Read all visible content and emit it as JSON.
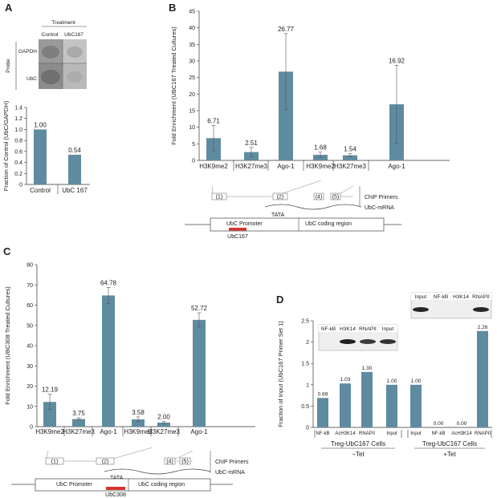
{
  "panels": {
    "A": {
      "letter": "A"
    },
    "B": {
      "letter": "B"
    },
    "C": {
      "letter": "C"
    },
    "D": {
      "letter": "D"
    }
  },
  "blotA": {
    "treatment": "Treatment",
    "probe": "Probe",
    "columns": [
      "Control",
      "UbC167"
    ],
    "rows": [
      "GAPDH",
      "UbC"
    ]
  },
  "blotD1": {
    "lanes": [
      "NF-kB",
      "H3K14",
      "RNAPII",
      "Input"
    ]
  },
  "blotD2": {
    "lanes": [
      "Input",
      "NF-kB",
      "H3K14",
      "RNAPII"
    ]
  },
  "geneB": {
    "primers_label": "ChIP Primers",
    "mrna_label": "UbC-mRNA",
    "tata": "TATA",
    "promoter": "UbC Promoter",
    "coding": "UbC coding region",
    "sirna": "UbC167",
    "primers": [
      "(1)",
      "(2)",
      "(4)",
      "(5)"
    ]
  },
  "geneC": {
    "primers_label": "ChIP Primers",
    "mrna_label": "UbC-mRNA",
    "tata": "TATA",
    "promoter": "UbC Promoter",
    "coding": "UbC coding region",
    "sirna": "UbC308",
    "primers": [
      "(1)",
      "(2)",
      "(4)",
      "(5)"
    ]
  },
  "chart_data": [
    {
      "id": "A",
      "type": "bar",
      "categories": [
        "Control",
        "UbC 167"
      ],
      "values": [
        1.0,
        0.54
      ],
      "value_labels": [
        "1.00",
        "0.54"
      ],
      "ylabel": "Fraction of Control (UbC/GAPDH)",
      "ylim": [
        0,
        1.4
      ],
      "yticks": [
        "0",
        "0.2",
        "0.4",
        "0.6",
        "0.8",
        "1.0",
        "1.2",
        "1.4"
      ],
      "color": "#5f8ba1"
    },
    {
      "id": "B",
      "type": "bar",
      "categories": [
        "H3K9me2",
        "H3K27me3",
        "Ago-1",
        "H3K9me2",
        "H3K27me3",
        "Ago-1"
      ],
      "values": [
        6.71,
        2.51,
        26.77,
        1.68,
        1.54,
        16.92
      ],
      "value_labels": [
        "6.71",
        "2.51",
        "26.77",
        "1.68",
        "1.54",
        "16.92"
      ],
      "errors": [
        3.8,
        1.4,
        11.5,
        0.8,
        0.5,
        11.8
      ],
      "ylabel": "Fold Enrichment (UBC167 Treated Cultures)",
      "ylim": [
        0,
        45
      ],
      "yticks": [
        "0",
        "5",
        "10",
        "15",
        "20",
        "25",
        "30",
        "35",
        "40",
        "45"
      ],
      "color": "#5f8ba1"
    },
    {
      "id": "C",
      "type": "bar",
      "categories": [
        "H3K9me2",
        "H3K27me3",
        "Ago-1",
        "H3K9me2",
        "H3K27me3",
        "Ago-1"
      ],
      "values": [
        12.19,
        3.75,
        64.78,
        3.58,
        2.0,
        52.72
      ],
      "value_labels": [
        "12.19",
        "3.75",
        "64.78",
        "3.58",
        "2.00",
        "52.72"
      ],
      "errors": [
        3.8,
        0.6,
        4.0,
        1.2,
        0.5,
        3.5
      ],
      "ylabel": "Fold Enrichment (UBC308 Treated Cultures)",
      "ylim": [
        0,
        80
      ],
      "yticks": [
        "0",
        "10",
        "20",
        "30",
        "40",
        "50",
        "60",
        "70",
        "80"
      ],
      "color": "#5f8ba1"
    },
    {
      "id": "D",
      "type": "bar",
      "categories": [
        "NF-kB",
        "AcH3K14",
        "RNAPII",
        "Input",
        "Input",
        "NF-kB",
        "AcH3K14",
        "RNAPII"
      ],
      "values": [
        0.69,
        1.03,
        1.3,
        1.0,
        1.0,
        0.0,
        0.0,
        2.26
      ],
      "value_labels": [
        "0.69",
        "1.03",
        "1.30",
        "1.00",
        "1.00",
        "0.00",
        "0.00",
        "2.26"
      ],
      "groups": [
        {
          "label": "Treg-UbC167 Cells",
          "condition": "−Tet"
        },
        {
          "label": "Treg-UbC167 Cells",
          "condition": "+Tet"
        }
      ],
      "ylabel": "Fraction of Input (UbC167 Primer Set 1)",
      "ylim": [
        0,
        2.5
      ],
      "yticks": [
        "0",
        "0.5",
        "1",
        "1.5",
        "2",
        "2.5"
      ],
      "color": "#5f8ba1"
    }
  ]
}
